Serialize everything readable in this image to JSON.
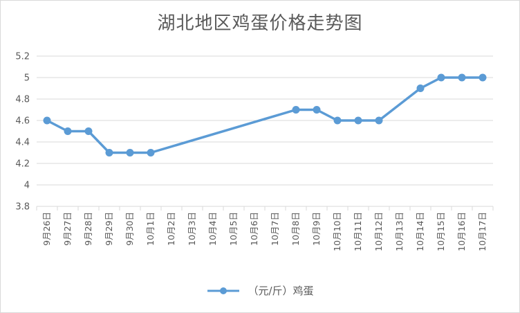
{
  "chart_data": {
    "type": "line",
    "title": "湖北地区鸡蛋价格走势图",
    "xlabel": "",
    "ylabel": "",
    "ylim": [
      3.8,
      5.2
    ],
    "yticks": [
      "3.8",
      "4",
      "4.2",
      "4.4",
      "4.6",
      "4.8",
      "5",
      "5.2"
    ],
    "grid": true,
    "legend_position": "bottom",
    "categories": [
      "9月26日",
      "9月27日",
      "9月28日",
      "9月29日",
      "9月30日",
      "10月1日",
      "10月2日",
      "10月3日",
      "10月4日",
      "10月5日",
      "10月6日",
      "10月7日",
      "10月8日",
      "10月9日",
      "10月10日",
      "10月11日",
      "10月12日",
      "10月13日",
      "10月14日",
      "10月15日",
      "10月16日",
      "10月17日"
    ],
    "series": [
      {
        "name": "（元/斤）鸡蛋",
        "color": "#5b9bd5",
        "values": [
          4.6,
          4.5,
          4.5,
          4.3,
          4.3,
          4.3,
          null,
          null,
          null,
          null,
          null,
          null,
          4.7,
          4.7,
          4.6,
          4.6,
          4.6,
          null,
          4.9,
          5.0,
          5.0,
          5.0
        ]
      }
    ]
  }
}
